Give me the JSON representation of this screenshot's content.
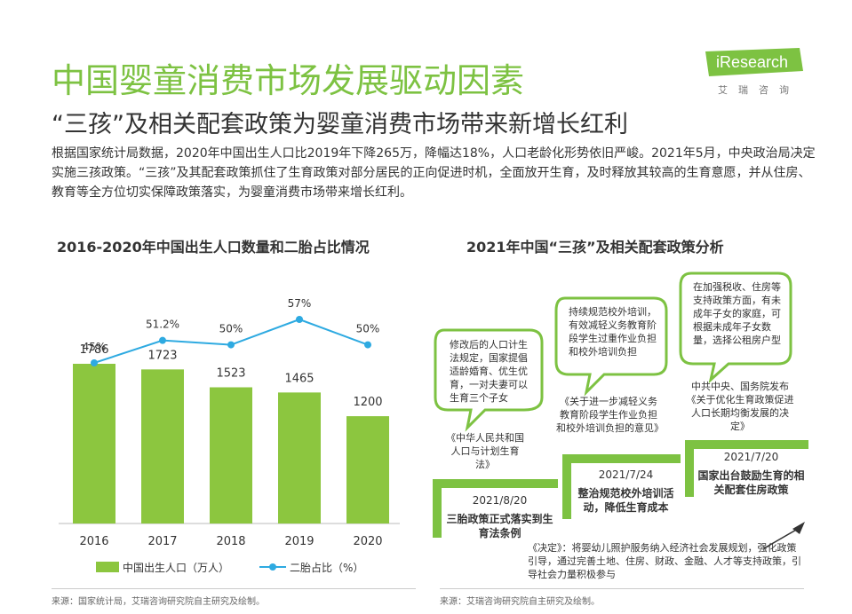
{
  "header": {
    "title": "中国婴童消费市场发展驱动因素",
    "subtitle": "“三孩”及相关配套政策为婴童消费市场带来新增长红利",
    "intro": "根据国家统计局数据，2020年中国出生人口比2019年下降265万，降幅达18%，人口老龄化形势依旧严峻。2021年5月，中央政治局决定实施三孩政策。“三孩”及其配套政策抓住了生育政策对部分居民的正向促进时机，全面放开生育，及时释放其较高的生育意愿，并从住房、教育等全方位切实保障政策落实，为婴童消费市场带来增长红利。"
  },
  "logo": {
    "name": "iResearch",
    "sub": "艾瑞咨询",
    "color": "#7dc242"
  },
  "left_panel": {
    "title": "2016-2020年中国出生人口数量和二胎占比情况",
    "source": "来源：国家统计局，艾瑞咨询研究院自主研究及绘制。"
  },
  "chart_data": {
    "type": "bar",
    "categories": [
      "2016",
      "2017",
      "2018",
      "2019",
      "2020"
    ],
    "series": [
      {
        "name": "中国出生人口（万人）",
        "type": "bar",
        "values": [
          1786,
          1723,
          1523,
          1465,
          1200
        ],
        "labels": [
          "1786",
          "1723",
          "1523",
          "1465",
          "1200"
        ],
        "color": "#8cc63f"
      },
      {
        "name": "二胎占比（%）",
        "type": "line",
        "values": [
          45,
          51.2,
          50,
          57,
          50
        ],
        "labels": [
          "45%",
          "51.2%",
          "50%",
          "57%",
          "50%"
        ],
        "color": "#2eaae1"
      }
    ],
    "legend_position": "bottom",
    "grid": false
  },
  "right_panel": {
    "title": "2021年中国“三孩”及相关配套政策分析",
    "source": "来源：艾瑞咨询研究院自主研究及绘制。",
    "steps": [
      {
        "bubble": "修改后的人口计生法规定，国家提倡适龄婚育、优生优育，一对夫妻可以生育三个子女",
        "policy": "《中华人民共和国人口与计划生育法》",
        "date": "2021/8/20",
        "event": "三胎政策正式落实到生育法条例"
      },
      {
        "bubble": "持续规范校外培训，有效减轻义务教育阶段学生过重作业负担和校外培训负担",
        "policy": "《关于进一步减轻义务教育阶段学生作业负担和校外培训负担的意见》",
        "date": "2021/7/24",
        "event": "整治规范校外培训活动，降低生育成本"
      },
      {
        "bubble": "在加强税收、住房等支持政策方面，有未成年子女的家庭，可根据未成年子女数量，选择公租房户型",
        "policy": "中共中央、国务院发布《关于优化生育政策促进人口长期均衡发展的决定》",
        "date": "2021/7/20",
        "event": "国家出台鼓励生育的相关配套住房政策"
      }
    ],
    "decision": "《决定》：将婴幼儿照护服务纳入经济社会发展规划，强化政策引导，通过完善土地、住房、财政、金融、人才等支持政策，引导社会力量积极参与",
    "bubble_border": "#7dc242",
    "step_color": "#7dc242"
  }
}
